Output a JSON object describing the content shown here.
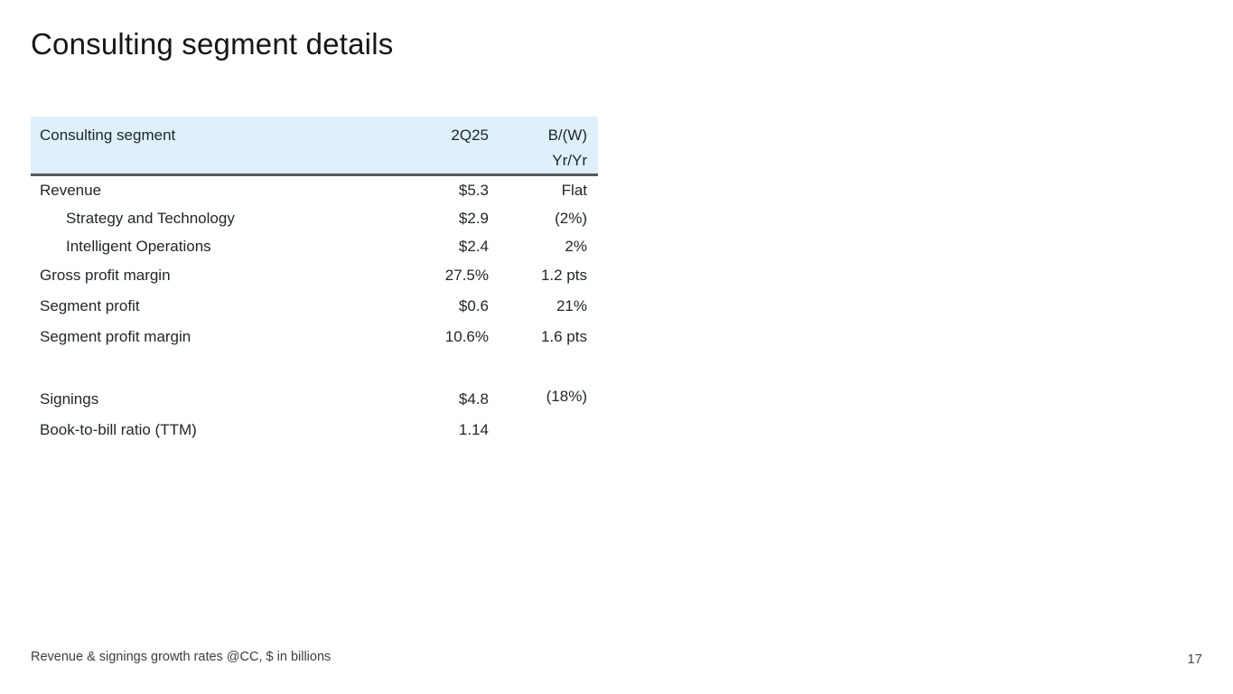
{
  "slide": {
    "title": "Consulting segment details",
    "footnote": "Revenue & signings growth rates @CC, $ in billions",
    "page_number": "17"
  },
  "table": {
    "header": {
      "col1": "Consulting segment",
      "col2": "2Q25",
      "col3_line1": "B/(W)",
      "col3_line2": "Yr/Yr"
    },
    "rows": [
      {
        "label": "Revenue",
        "q25": "$5.3",
        "yoy": "Flat",
        "indent": false
      },
      {
        "label": "Strategy and Technology",
        "q25": "$2.9",
        "yoy": "(2%)",
        "indent": true
      },
      {
        "label": "Intelligent Operations",
        "q25": "$2.4",
        "yoy": "2%",
        "indent": true
      },
      {
        "label": "Gross profit margin",
        "q25": "27.5%",
        "yoy": "1.2 pts",
        "indent": false
      },
      {
        "label": "Segment profit",
        "q25": "$0.6",
        "yoy": "21%",
        "indent": false
      },
      {
        "label": "Segment profit margin",
        "q25": "10.6%",
        "yoy": "1.6 pts",
        "indent": false
      },
      {
        "spacer": true
      },
      {
        "label": "Signings",
        "q25": "$4.8",
        "yoy": "(18%)",
        "indent": false
      },
      {
        "label": "Book-to-bill ratio (TTM)",
        "q25": "1.14",
        "yoy": "",
        "indent": false
      }
    ],
    "colors": {
      "header_bg": "#dff0fa",
      "header_rule": "#53595f",
      "text": "#21272a"
    }
  }
}
